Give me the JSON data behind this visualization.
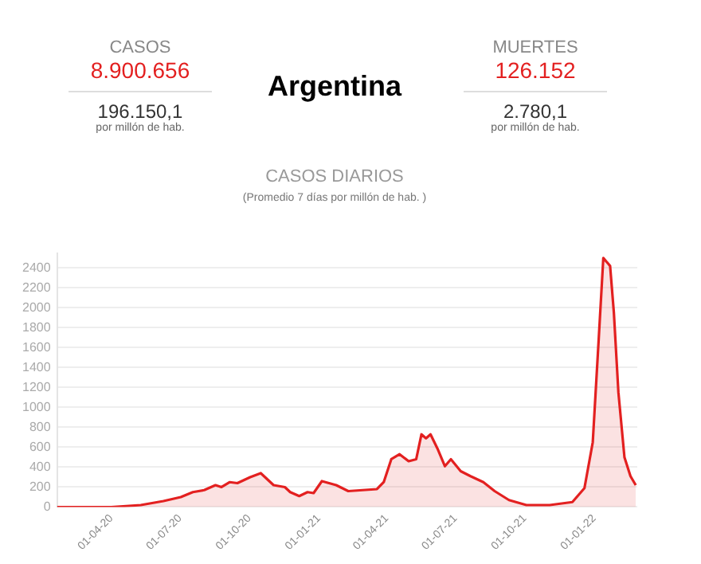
{
  "chart_data": {
    "type": "area",
    "title": "Argentina",
    "subtitle": "CASOS DIARIOS",
    "annotations": [
      "CASOS",
      "8.900.656",
      "196.150,1",
      "por millón de hab.",
      "MUERTES",
      "126.152",
      "2.780,1",
      "por millón de hab.",
      "(Promedio 7 días por millón de hab. )"
    ],
    "x": [
      "2020-01-20",
      "2020-03-01",
      "2020-04-01",
      "2020-05-10",
      "2020-06-09",
      "2020-07-02",
      "2020-07-18",
      "2020-08-02",
      "2020-08-17",
      "2020-08-25",
      "2020-09-05",
      "2020-09-15",
      "2020-10-02",
      "2020-10-16",
      "2020-11-02",
      "2020-11-17",
      "2020-11-24",
      "2020-12-06",
      "2020-12-17",
      "2020-12-25",
      "2021-01-05",
      "2021-01-24",
      "2021-02-09",
      "2021-03-19",
      "2021-03-28",
      "2021-04-07",
      "2021-04-18",
      "2021-04-30",
      "2021-05-10",
      "2021-05-17",
      "2021-05-23",
      "2021-05-29",
      "2021-06-07",
      "2021-06-17",
      "2021-06-25",
      "2021-07-08",
      "2021-07-21",
      "2021-08-07",
      "2021-08-22",
      "2021-09-10",
      "2021-10-03",
      "2021-11-03",
      "2021-12-03",
      "2021-12-19",
      "2021-12-30",
      "2022-01-07",
      "2022-01-13",
      "2022-01-22",
      "2022-01-27",
      "2022-02-02",
      "2022-02-10",
      "2022-02-18",
      "2022-02-25"
    ],
    "series": [
      {
        "color": "#e32020",
        "values": [
          0,
          0,
          0,
          20,
          60,
          100,
          150,
          170,
          220,
          200,
          250,
          240,
          300,
          340,
          220,
          200,
          150,
          110,
          150,
          140,
          260,
          220,
          160,
          180,
          250,
          480,
          530,
          460,
          480,
          730,
          690,
          730,
          590,
          410,
          480,
          360,
          310,
          250,
          160,
          70,
          20,
          20,
          50,
          190,
          650,
          1700,
          2500,
          2420,
          1950,
          1150,
          500,
          310,
          220
        ]
      }
    ],
    "xlim": [
      "2020-01-20",
      "2022-02-27"
    ],
    "xticks": [
      {
        "value": "2020-04-01",
        "label": "01-04-20"
      },
      {
        "value": "2020-07-01",
        "label": "01-07-20"
      },
      {
        "value": "2020-10-01",
        "label": "01-10-20"
      },
      {
        "value": "2021-01-01",
        "label": "01-01-21"
      },
      {
        "value": "2021-04-01",
        "label": "01-04-21"
      },
      {
        "value": "2021-07-01",
        "label": "01-07-21"
      },
      {
        "value": "2021-10-01",
        "label": "01-10-21"
      },
      {
        "value": "2022-01-01",
        "label": "01-01-22"
      }
    ],
    "ylim": [
      0,
      2550
    ],
    "yticks": [
      0,
      200,
      400,
      600,
      800,
      1000,
      1200,
      1400,
      1600,
      1800,
      2000,
      2200,
      2400
    ],
    "grid": "y",
    "legend": false,
    "marker": "none",
    "line_style": "solid"
  }
}
